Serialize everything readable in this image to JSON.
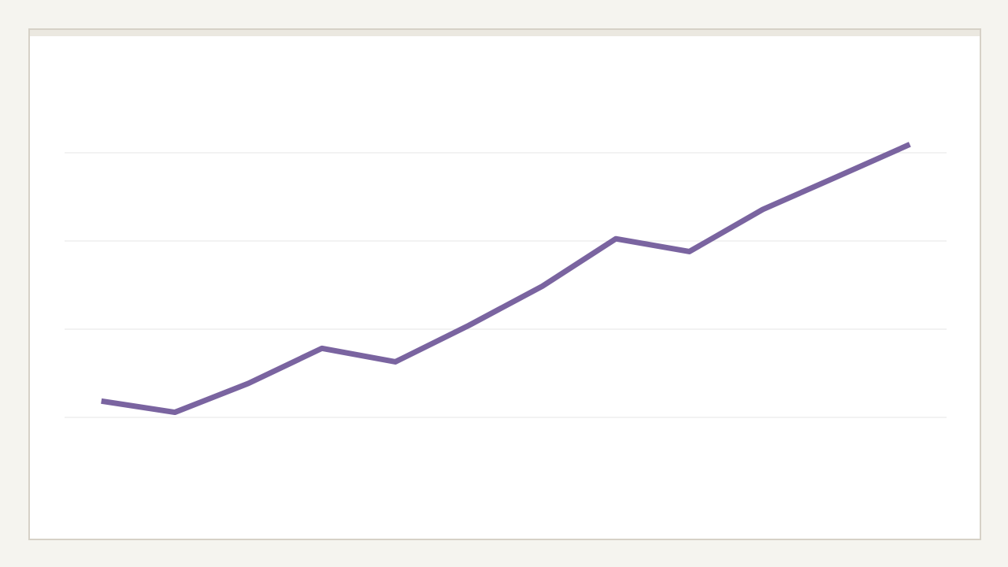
{
  "chart_data": {
    "type": "line",
    "title": "",
    "xlabel": "",
    "ylabel": "",
    "x": [
      1,
      2,
      3,
      4,
      5,
      6,
      7,
      8,
      9,
      10,
      11,
      12
    ],
    "series": [
      {
        "values": [
          47.4,
          42.3,
          55.4,
          71.3,
          65.2,
          81.7,
          99.5,
          121.0,
          115.2,
          134.3,
          149.0,
          163.8
        ]
      }
    ],
    "ylim": [
      0,
      200
    ],
    "grid": true,
    "colors": {
      "line": "#7a64a0",
      "grid": "#e4e4e4",
      "frame_border": "#d6d1c7",
      "background": "#f5f4ef"
    }
  }
}
